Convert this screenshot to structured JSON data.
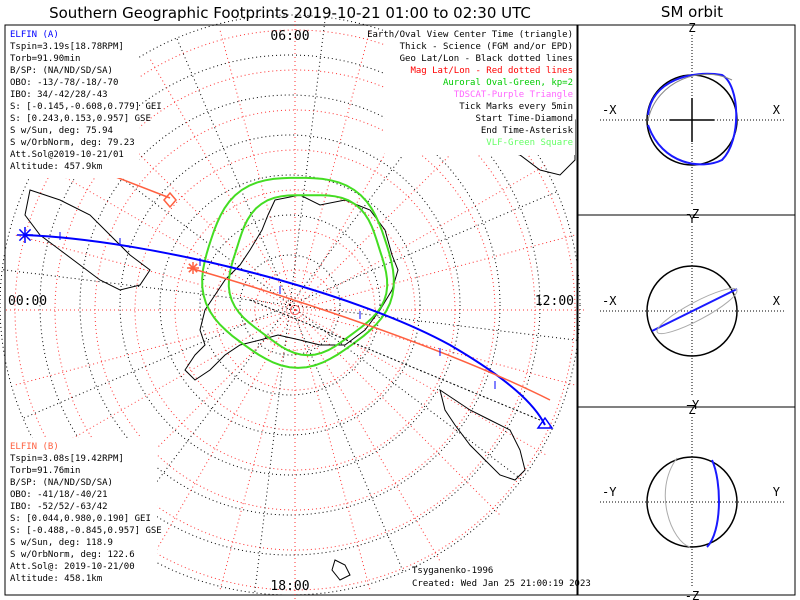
{
  "title": "Southern Geographic Footprints 2019-10-21 01:00 to 02:30 UTC",
  "orbit_title": "SM orbit",
  "clock": {
    "top": "06:00",
    "left": "00:00",
    "right": "12:00",
    "bottom": "18:00"
  },
  "elfin_a": {
    "name": "ELFIN (A)",
    "color": "#0000ff",
    "lines": [
      "Tspin=3.19s[18.78RPM]",
      "Torb=91.90min",
      "B/SP: (NA/ND/SD/SA)",
      "OBO: -13/-78/-18/-70",
      "IBO: 34/-42/28/-43",
      "S: [-0.145,-0.608,0.779] GEI",
      "S: [0.243,0.153,0.957] GSE",
      "S w/Sun, deg: 75.94",
      "S w/OrbNorm, deg: 79.23",
      "Att.Sol@2019-10-21/01",
      "Altitude: 457.9km"
    ]
  },
  "elfin_b": {
    "name": "ELFIN (B)",
    "color": "#ff6040",
    "lines": [
      "Tspin=3.08s[19.42RPM]",
      "Torb=91.76min",
      "B/SP: (NA/ND/SD/SA)",
      "OBO: -41/18/-40/21",
      "IBO: -52/52/-63/42",
      "S: [0.044,0.980,0.190] GEI",
      "S: [-0.488,-0.845,0.957] GSE",
      "S w/Sun, deg: 118.9",
      "S w/OrbNorm, deg: 122.6",
      "Att.Sol@: 2019-10-21/00",
      "Altitude: 458.1km"
    ]
  },
  "legend": [
    {
      "text": "Earth/Oval View Center Time (triangle)",
      "color": "#000000"
    },
    {
      "text": "Thick - Science (FGM and/or EPD)",
      "color": "#000000"
    },
    {
      "text": "Geo Lat/Lon - Black dotted lines",
      "color": "#000000"
    },
    {
      "text": "Mag Lat/Lon - Red dotted lines",
      "color": "#ff0000"
    },
    {
      "text": "Auroral Oval-Green, kp=2",
      "color": "#00cc00"
    },
    {
      "text": "TDSCAT-Purple Triangle",
      "color": "#ff66ff"
    },
    {
      "text": "Tick Marks every 5min",
      "color": "#000000"
    },
    {
      "text": "Start Time-Diamond",
      "color": "#000000"
    },
    {
      "text": "End Time-Asterisk",
      "color": "#000000"
    },
    {
      "text": "VLF-Green Square",
      "color": "#66ff66"
    }
  ],
  "credit": "Tsyganenko-1996",
  "created": "Created: Wed Jan 25 21:00:19 2023",
  "panels": [
    {
      "top": "Z",
      "bottom": "-Z",
      "left": "-X",
      "right": "X"
    },
    {
      "top": "Y",
      "bottom": "-Y",
      "left": "-X",
      "right": "X"
    },
    {
      "top": "Z",
      "bottom": "-Z",
      "left": "-Y",
      "right": "Y"
    }
  ]
}
